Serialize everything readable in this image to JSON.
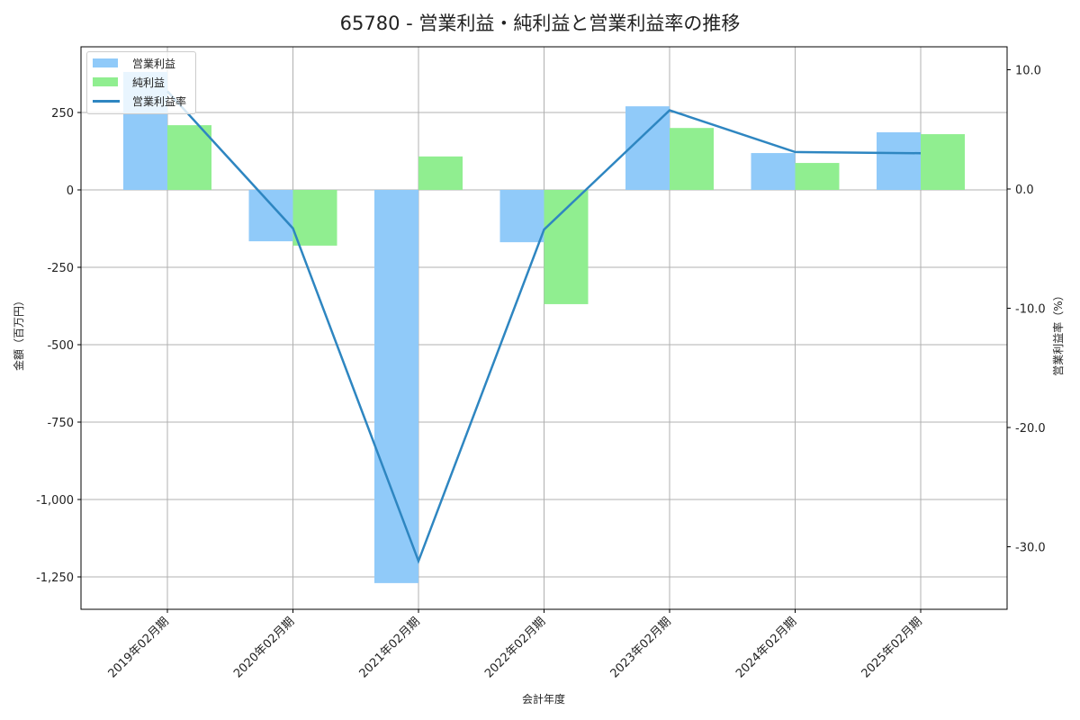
{
  "title": "65780 - 営業利益・純利益と営業利益率の推移",
  "colors": {
    "operating_profit": "#90CAF9",
    "net_profit": "#90EE90",
    "margin_line": "#2E86C1",
    "grid": "#b0b0b0"
  },
  "legend": {
    "items": [
      {
        "label": "営業利益",
        "type": "bar"
      },
      {
        "label": "純利益",
        "type": "bar"
      },
      {
        "label": "営業利益率",
        "type": "line"
      }
    ]
  },
  "chart_data": {
    "type": "bar",
    "title": "65780 - 営業利益・純利益と営業利益率の推移",
    "xlabel": "会計年度",
    "ylabel": "金額（百万円）",
    "y2label": "営業利益率（%）",
    "categories": [
      "2019年02月期",
      "2020年02月期",
      "2021年02月期",
      "2022年02月期",
      "2023年02月期",
      "2024年02月期",
      "2025年02月期"
    ],
    "series": [
      {
        "name": "営業利益",
        "type": "bar",
        "axis": "left",
        "values": [
          381,
          -166,
          -1270,
          -169,
          270,
          119,
          186
        ]
      },
      {
        "name": "純利益",
        "type": "bar",
        "axis": "left",
        "values": [
          209,
          -180,
          108,
          -369,
          200,
          87,
          180
        ]
      },
      {
        "name": "営業利益率",
        "type": "line",
        "axis": "right",
        "values": [
          8.2,
          -3.3,
          -31.2,
          -3.4,
          6.6,
          3.1,
          3.0
        ]
      }
    ],
    "yticks": [
      "250",
      "0",
      "-250",
      "-500",
      "-750",
      "-1,000",
      "-1,250"
    ],
    "ytick_values": [
      250,
      0,
      -250,
      -500,
      -750,
      -1000,
      -1250
    ],
    "y2ticks": [
      "10.0",
      "0.0",
      "-10.0",
      "-20.0",
      "-30.0"
    ],
    "y2tick_values": [
      10,
      0,
      -10,
      -20,
      -30
    ],
    "ylim": [
      -1356,
      460
    ],
    "y2lim": [
      -35.3,
      12
    ],
    "grid": true,
    "legend_position": "upper left"
  }
}
